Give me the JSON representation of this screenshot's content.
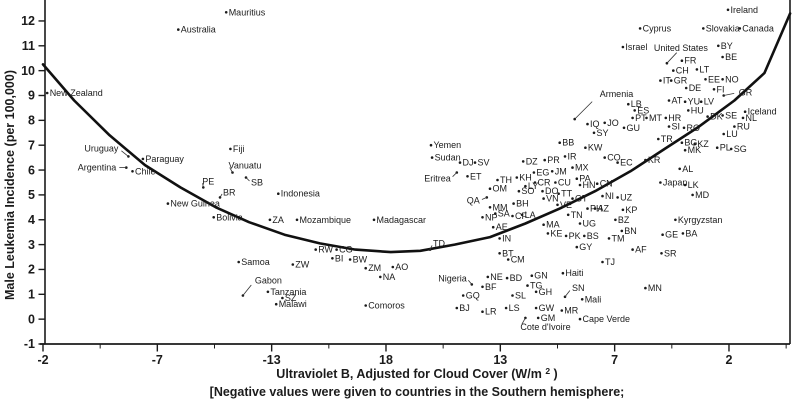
{
  "colors": {
    "ink": "#1b1b1b",
    "curve": "#111111",
    "background": "#ffffff"
  },
  "chart_data": {
    "type": "scatter",
    "title": "",
    "ylabel": "Male Leukemia Incidence (per 100,000)",
    "xlabel_main": "Ultraviolet B, Adjusted for Cloud Cover (W/m",
    "xlabel_sup": "2",
    "xlabel_close": ")",
    "footnote": "[Negative values were given to countries in the Southern hemisphere;",
    "x_tick_labels": [
      "-2",
      "-7",
      "-13",
      "18",
      "13",
      "7",
      "2"
    ],
    "y_tick_values": [
      12,
      11,
      10,
      9,
      8,
      7,
      6,
      5,
      4,
      3,
      2,
      1,
      0,
      -1
    ],
    "ylim": [
      -1,
      13
    ],
    "grid": false,
    "legend": false,
    "point_fields": [
      "label",
      "uvb",
      "incidence",
      "southern",
      "label_dx",
      "label_dy",
      "label_anchor"
    ],
    "points": [
      [
        "New Zealand",
        -2.2,
        9.1,
        1
      ],
      [
        "Mauritius",
        -10.8,
        12.35,
        1
      ],
      [
        "Australia",
        -8.5,
        11.65,
        1
      ],
      [
        "Uruguay",
        -6.1,
        6.55,
        1,
        -10,
        -8,
        "e"
      ],
      [
        "Paraguay",
        -6.8,
        6.45,
        1
      ],
      [
        "Argentina",
        -6.0,
        6.1,
        1,
        -10,
        0,
        "e"
      ],
      [
        "Chile",
        -6.3,
        5.95,
        1
      ],
      [
        "Fiji",
        -11.0,
        6.85,
        1
      ],
      [
        "Vanuatu",
        -11.1,
        5.9,
        1,
        -4,
        -7,
        "s"
      ],
      [
        "SB",
        -11.75,
        5.7,
        1,
        5,
        5,
        "s"
      ],
      [
        "PE",
        -9.7,
        5.3,
        1,
        -1,
        -6,
        "s"
      ],
      [
        "BR",
        -10.5,
        4.9,
        1,
        3,
        -5,
        "s"
      ],
      [
        "New Guinea",
        -8.0,
        4.65,
        1
      ],
      [
        "Bolivia",
        -10.2,
        4.1,
        1
      ],
      [
        "Indonesia",
        -13.3,
        5.05,
        1
      ],
      [
        "ZA",
        -12.9,
        4.0,
        1
      ],
      [
        "Mozambique",
        -14.2,
        4.0,
        1
      ],
      [
        "Madagascar",
        -17.9,
        4.0,
        1
      ],
      [
        "Samoa",
        -11.4,
        2.3,
        1
      ],
      [
        "ZW",
        -14.0,
        2.2,
        1
      ],
      [
        "RW",
        -15.1,
        2.8,
        1
      ],
      [
        "CG",
        -16.1,
        2.8,
        1
      ],
      [
        "BI",
        -15.9,
        2.45,
        1
      ],
      [
        "BW",
        -16.75,
        2.4,
        1
      ],
      [
        "ZM",
        -17.5,
        2.05,
        1
      ],
      [
        "AO",
        -18.8,
        2.1,
        1
      ],
      [
        "NA",
        -18.2,
        1.7,
        1
      ],
      [
        "Gabon",
        -11.6,
        0.95,
        1,
        12,
        -15,
        "s"
      ],
      [
        "Tanzania",
        -12.8,
        1.1,
        1
      ],
      [
        "SZ",
        -13.5,
        0.85,
        1
      ],
      [
        "Malawi",
        -13.2,
        0.6,
        1
      ],
      [
        "Comoros",
        -17.5,
        0.55,
        1
      ],
      [
        "TD",
        15.95,
        2.8,
        0,
        3,
        -6,
        "s"
      ],
      [
        "Yemen",
        15.9,
        7.0,
        0
      ],
      [
        "Sudan",
        15.85,
        6.5,
        0
      ],
      [
        "DJ",
        14.55,
        6.3,
        0
      ],
      [
        "SV",
        13.85,
        6.3,
        0
      ],
      [
        "Eritrea",
        14.7,
        5.9,
        0,
        -6,
        6,
        "e"
      ],
      [
        "ET",
        14.2,
        5.75,
        0
      ],
      [
        "DZ",
        11.6,
        6.35,
        0
      ],
      [
        "PR",
        10.6,
        6.4,
        0
      ],
      [
        "EG",
        11.1,
        5.9,
        0
      ],
      [
        "JM",
        10.25,
        5.95,
        0
      ],
      [
        "MX",
        9.3,
        6.1,
        0
      ],
      [
        "TH",
        12.8,
        5.6,
        0
      ],
      [
        "KH",
        11.9,
        5.7,
        0
      ],
      [
        "CR",
        11.05,
        5.5,
        0
      ],
      [
        "CU",
        10.1,
        5.5,
        0
      ],
      [
        "PA",
        9.1,
        5.65,
        0
      ],
      [
        "HN",
        8.95,
        5.4,
        0
      ],
      [
        "CN",
        8.15,
        5.45,
        0
      ],
      [
        "OM",
        13.15,
        5.25,
        0
      ],
      [
        "LY",
        11.5,
        5.35,
        0
      ],
      [
        "SO",
        11.8,
        5.15,
        0
      ],
      [
        "DO",
        10.7,
        5.15,
        0
      ],
      [
        "TT",
        9.95,
        5.05,
        0
      ],
      [
        "GT",
        9.3,
        4.85,
        0
      ],
      [
        "QA",
        13.3,
        4.9,
        0,
        -7,
        3,
        "e"
      ],
      [
        "MM",
        13.15,
        4.5,
        0
      ],
      [
        "SA",
        12.9,
        4.25,
        0
      ],
      [
        "BH",
        12.05,
        4.65,
        0
      ],
      [
        "VN",
        10.65,
        4.85,
        0
      ],
      [
        "VE",
        10.0,
        4.6,
        0
      ],
      [
        "NI",
        7.9,
        4.95,
        0
      ],
      [
        "UZ",
        7.2,
        4.9,
        0
      ],
      [
        "NP",
        13.5,
        4.1,
        0
      ],
      [
        "CF",
        12.1,
        4.15,
        0
      ],
      [
        "LA",
        11.65,
        4.2,
        0
      ],
      [
        "AE",
        13.0,
        3.7,
        0
      ],
      [
        "IN",
        12.7,
        3.25,
        0
      ],
      [
        "PH",
        8.6,
        4.45,
        0
      ],
      [
        "AZ",
        8.25,
        4.45,
        0
      ],
      [
        "KP",
        6.95,
        4.4,
        0
      ],
      [
        "TN",
        9.5,
        4.2,
        0
      ],
      [
        "MA",
        10.65,
        3.8,
        0
      ],
      [
        "UG",
        8.95,
        3.85,
        0
      ],
      [
        "KE",
        10.45,
        3.45,
        0
      ],
      [
        "PK",
        9.6,
        3.35,
        0
      ],
      [
        "BS",
        8.75,
        3.35,
        0
      ],
      [
        "GY",
        9.1,
        2.9,
        0
      ],
      [
        "TM",
        7.6,
        3.25,
        0
      ],
      [
        "BZ",
        7.3,
        4.0,
        0
      ],
      [
        "BN",
        7.0,
        3.55,
        0
      ],
      [
        "GE",
        5.1,
        3.4,
        0
      ],
      [
        "BA",
        4.15,
        3.45,
        0
      ],
      [
        "Kyrgyzstan",
        4.5,
        4.0,
        0
      ],
      [
        "AF",
        6.5,
        2.8,
        0
      ],
      [
        "SR",
        5.15,
        2.65,
        0
      ],
      [
        "TJ",
        7.9,
        2.3,
        0
      ],
      [
        "MN",
        5.9,
        1.25,
        0
      ],
      [
        "BT",
        12.7,
        2.65,
        0
      ],
      [
        "CM",
        12.3,
        2.4,
        0
      ],
      [
        "Haiti",
        9.75,
        1.85,
        0
      ],
      [
        "SN",
        9.65,
        0.9,
        0,
        7,
        -9,
        "s"
      ],
      [
        "Mali",
        8.85,
        0.8,
        0
      ],
      [
        "MR",
        9.8,
        0.35,
        0
      ],
      [
        "Cape Verde",
        8.95,
        0.0,
        0
      ],
      [
        "Nigeria",
        14.0,
        1.4,
        0,
        -5,
        -6,
        "e"
      ],
      [
        "NE",
        13.25,
        1.7,
        0
      ],
      [
        "BD",
        12.35,
        1.65,
        0
      ],
      [
        "GN",
        11.2,
        1.75,
        0
      ],
      [
        "BF",
        13.5,
        1.3,
        0
      ],
      [
        "TG",
        11.4,
        1.35,
        0
      ],
      [
        "GH",
        11.0,
        1.1,
        0
      ],
      [
        "GQ",
        14.4,
        0.95,
        0
      ],
      [
        "SL",
        12.1,
        0.95,
        0
      ],
      [
        "BJ",
        14.7,
        0.45,
        0
      ],
      [
        "LR",
        13.5,
        0.3,
        0
      ],
      [
        "LS",
        12.4,
        0.45,
        0
      ],
      [
        "GW",
        11.0,
        0.45,
        0
      ],
      [
        "GM",
        10.9,
        0.05,
        0
      ],
      [
        "Cote d'Ivoire",
        11.5,
        0.05,
        0,
        -5,
        9,
        "s"
      ],
      [
        "Ireland",
        2.05,
        12.45,
        0
      ],
      [
        "Cyprus",
        6.15,
        11.7,
        0
      ],
      [
        "Slovakia",
        3.2,
        11.7,
        0
      ],
      [
        "Canada",
        1.5,
        11.7,
        0
      ],
      [
        "Israel",
        6.95,
        10.95,
        0
      ],
      [
        "United States",
        4.9,
        10.3,
        0,
        14,
        -15,
        "m"
      ],
      [
        "BY",
        2.5,
        11.0,
        0
      ],
      [
        "BE",
        2.3,
        10.55,
        0
      ],
      [
        "FR",
        4.2,
        10.4,
        0
      ],
      [
        "CH",
        4.6,
        10.0,
        0
      ],
      [
        "LT",
        3.5,
        10.05,
        0
      ],
      [
        "IT",
        5.2,
        9.6,
        0
      ],
      [
        "GR",
        4.7,
        9.6,
        0
      ],
      [
        "EE",
        3.1,
        9.65,
        0
      ],
      [
        "NO",
        2.3,
        9.65,
        0
      ],
      [
        "DE",
        4.0,
        9.3,
        0
      ],
      [
        "FI",
        2.7,
        9.25,
        0
      ],
      [
        "GR",
        2.25,
        9.0,
        0,
        15,
        -3,
        "s"
      ],
      [
        "Armenia",
        9.2,
        8.05,
        0,
        25,
        -25,
        "s"
      ],
      [
        "LB",
        6.7,
        8.65,
        0
      ],
      [
        "ES",
        6.4,
        8.4,
        0
      ],
      [
        "AT",
        4.8,
        8.8,
        0
      ],
      [
        "YU",
        4.05,
        8.75,
        0
      ],
      [
        "LV",
        3.3,
        8.75,
        0
      ],
      [
        "HU",
        3.9,
        8.4,
        0
      ],
      [
        "Iceland",
        1.25,
        8.35,
        0
      ],
      [
        "PT",
        6.5,
        8.1,
        0
      ],
      [
        "MT",
        5.85,
        8.1,
        0
      ],
      [
        "HR",
        4.95,
        8.1,
        0
      ],
      [
        "DK",
        3.0,
        8.15,
        0
      ],
      [
        "SE",
        2.3,
        8.2,
        0
      ],
      [
        "NL",
        1.35,
        8.1,
        0
      ],
      [
        "RU",
        1.75,
        7.75,
        0
      ],
      [
        "LU",
        2.25,
        7.45,
        0
      ],
      [
        "IQ",
        8.6,
        7.85,
        0
      ],
      [
        "JO",
        7.8,
        7.9,
        0
      ],
      [
        "SY",
        8.3,
        7.5,
        0
      ],
      [
        "GU",
        6.9,
        7.7,
        0
      ],
      [
        "SI",
        4.8,
        7.75,
        0
      ],
      [
        "RO",
        4.1,
        7.7,
        0
      ],
      [
        "TR",
        5.3,
        7.25,
        0
      ],
      [
        "BG",
        4.2,
        7.1,
        0
      ],
      [
        "KZ",
        3.6,
        7.05,
        0
      ],
      [
        "PL",
        2.55,
        6.9,
        0
      ],
      [
        "SG",
        1.9,
        6.85,
        0
      ],
      [
        "MK",
        4.05,
        6.8,
        0
      ],
      [
        "BB",
        9.9,
        7.1,
        0
      ],
      [
        "KW",
        8.7,
        6.9,
        0
      ],
      [
        "IR",
        9.65,
        6.55,
        0
      ],
      [
        "CO",
        7.8,
        6.5,
        0
      ],
      [
        "EC",
        7.2,
        6.3,
        0
      ],
      [
        "KR",
        5.9,
        6.4,
        0
      ],
      [
        "AL",
        4.3,
        6.05,
        0
      ],
      [
        "Japan",
        5.2,
        5.5,
        0
      ],
      [
        "LK",
        4.05,
        5.4,
        0
      ],
      [
        "MD",
        3.7,
        5.0,
        0
      ]
    ],
    "curve_fields": [
      "uvb",
      "incidence",
      "southern"
    ],
    "curve": [
      [
        -2,
        10.25,
        1
      ],
      [
        -3.5,
        8.8,
        1
      ],
      [
        -5.2,
        7.4,
        1
      ],
      [
        -6.9,
        6.2,
        1
      ],
      [
        -8.6,
        5.3,
        1
      ],
      [
        -10.3,
        4.5,
        1
      ],
      [
        -11.9,
        3.9,
        1
      ],
      [
        -13.6,
        3.4,
        1
      ],
      [
        -15.3,
        3.05,
        1
      ],
      [
        -17,
        2.8,
        1
      ],
      [
        -18.7,
        2.7,
        1
      ],
      [
        16.4,
        2.75,
        0
      ],
      [
        14.8,
        3.0,
        0
      ],
      [
        13.15,
        3.3,
        0
      ],
      [
        11.5,
        3.85,
        0
      ],
      [
        9.9,
        4.45,
        0
      ],
      [
        8.25,
        5.15,
        0
      ],
      [
        6.6,
        5.95,
        0
      ],
      [
        5.0,
        6.85,
        0
      ],
      [
        3.4,
        7.75,
        0
      ],
      [
        1.75,
        8.8,
        0
      ],
      [
        0.35,
        9.9,
        0
      ],
      [
        -0.85,
        12.3,
        0
      ]
    ]
  }
}
